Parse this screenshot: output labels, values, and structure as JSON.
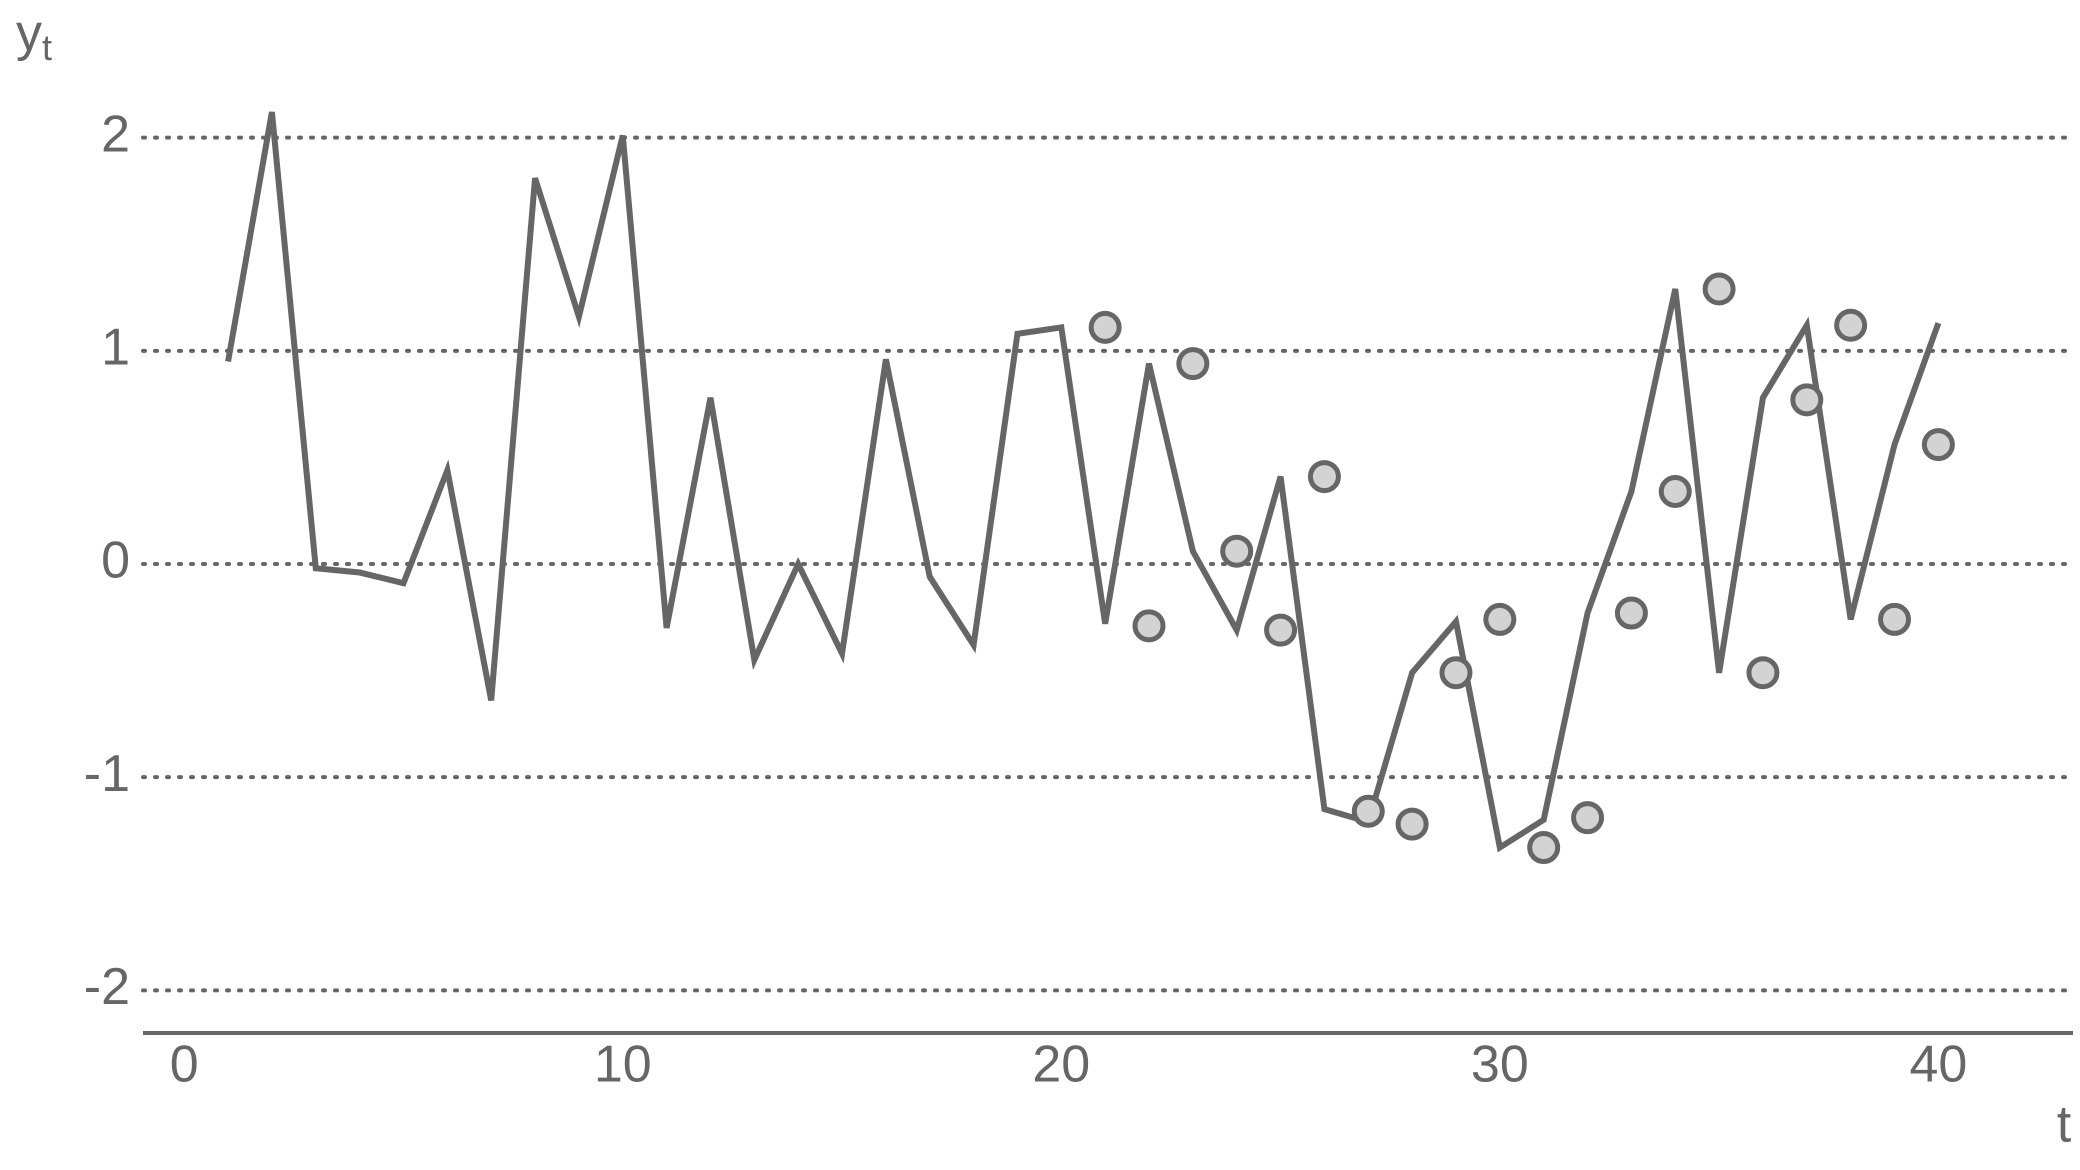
{
  "chart_data": {
    "type": "line",
    "ylabel": "y",
    "ylabel_sub": "t",
    "xlabel": "t",
    "x": [
      1,
      2,
      3,
      4,
      5,
      6,
      7,
      8,
      9,
      10,
      11,
      12,
      13,
      14,
      15,
      16,
      17,
      18,
      19,
      20,
      21,
      22,
      23,
      24,
      25,
      26,
      27,
      28,
      29,
      30,
      31,
      32,
      33,
      34,
      35,
      36,
      37,
      38,
      39,
      40
    ],
    "series": [
      {
        "type": "line",
        "color": "#666666",
        "x": [
          1,
          2,
          3,
          4,
          5,
          6,
          7,
          8,
          9,
          10,
          11,
          12,
          13,
          14,
          15,
          16,
          17,
          18,
          19,
          20,
          21,
          22,
          23,
          24,
          25,
          26,
          27,
          28,
          29,
          30,
          31,
          32,
          33,
          34,
          35,
          36,
          37,
          38,
          39,
          40
        ],
        "values": [
          0.95,
          2.12,
          -0.02,
          -0.04,
          -0.09,
          0.44,
          -0.64,
          1.81,
          1.16,
          2.01,
          -0.3,
          0.78,
          -0.45,
          0.0,
          -0.42,
          0.96,
          -0.06,
          -0.38,
          1.08,
          1.11,
          -0.28,
          0.94,
          0.06,
          -0.31,
          0.41,
          -1.15,
          -1.21,
          -0.51,
          -0.27,
          -1.33,
          -1.2,
          -0.23,
          0.34,
          1.29,
          -0.51,
          0.78,
          1.12,
          -0.26,
          0.56,
          1.13
        ]
      },
      {
        "type": "scatter",
        "color": "#666666",
        "fill": "#d3d3d3",
        "x": [
          21,
          22,
          23,
          24,
          25,
          26,
          27,
          28,
          29,
          30,
          31,
          32,
          33,
          34,
          35,
          36,
          37,
          38,
          39,
          40
        ],
        "values": [
          1.11,
          -0.29,
          0.94,
          0.06,
          -0.31,
          0.41,
          -1.16,
          -1.22,
          -0.51,
          -0.26,
          -1.33,
          -1.19,
          -0.23,
          0.34,
          1.29,
          -0.51,
          0.77,
          1.12,
          -0.26,
          0.56
        ]
      }
    ],
    "xlim": [
      -0.94,
      43.07
    ],
    "xticks": [
      0,
      10,
      20,
      30,
      40
    ],
    "ylim": [
      -2.2,
      2.2
    ],
    "yticks": [
      -2,
      -1,
      0,
      1,
      2
    ],
    "grid": true
  }
}
